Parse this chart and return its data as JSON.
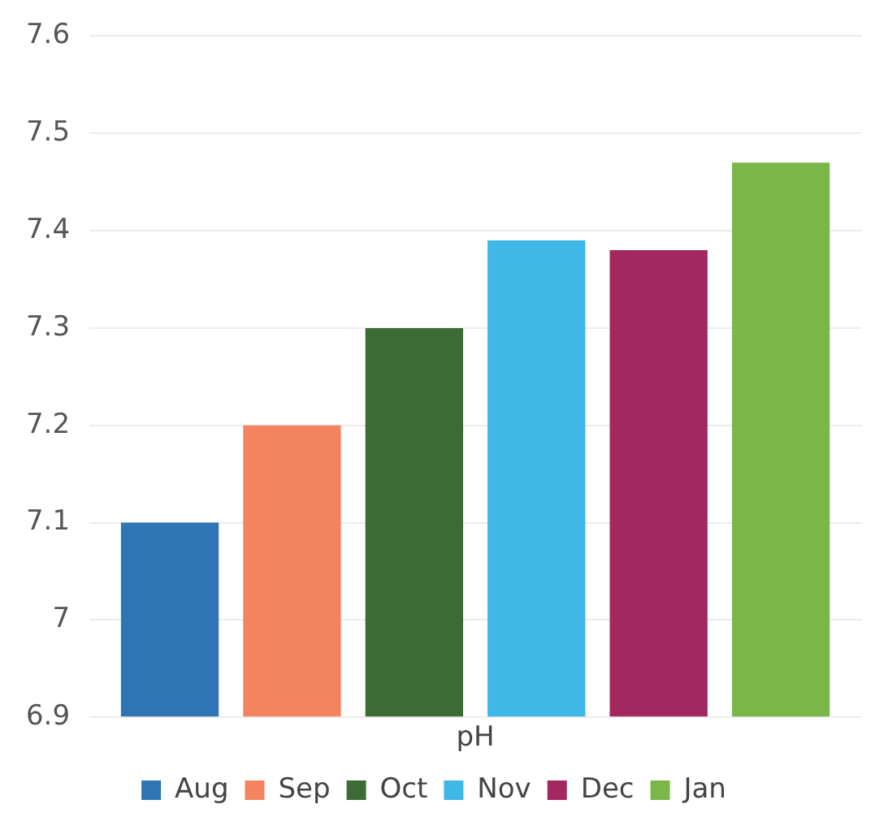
{
  "chart_data": {
    "type": "bar",
    "categories": [
      "pH"
    ],
    "series": [
      {
        "name": "Aug",
        "color": "#2e75b6",
        "values": [
          7.1
        ]
      },
      {
        "name": "Sep",
        "color": "#f4845f",
        "values": [
          7.2
        ]
      },
      {
        "name": "Oct",
        "color": "#3d6b35",
        "values": [
          7.3
        ]
      },
      {
        "name": "Nov",
        "color": "#3fb8e8",
        "values": [
          7.39
        ]
      },
      {
        "name": "Dec",
        "color": "#a3285f",
        "values": [
          7.38
        ]
      },
      {
        "name": "Jan",
        "color": "#7ab648",
        "values": [
          7.47
        ]
      }
    ],
    "ylim": [
      6.9,
      7.6
    ],
    "yticks": [
      6.9,
      7,
      7.1,
      7.2,
      7.3,
      7.4,
      7.5,
      7.6
    ],
    "grid": "y",
    "legend": "bottom"
  }
}
